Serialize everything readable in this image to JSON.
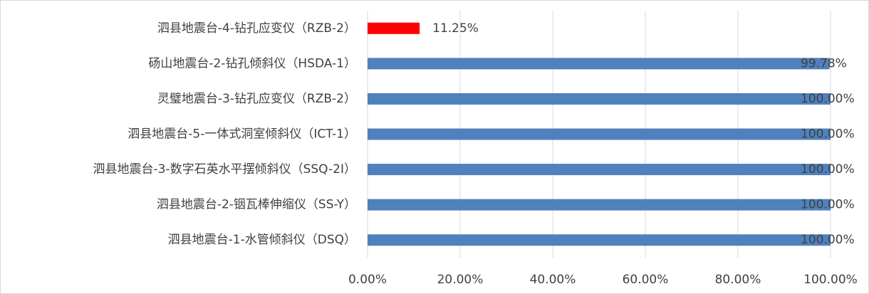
{
  "chart_data": {
    "type": "bar",
    "orientation": "horizontal",
    "categories": [
      "泗县地震台-4-钻孔应变仪（RZB-2）",
      "砀山地震台-2-钻孔倾斜仪（HSDA-1）",
      "灵璧地震台-3-钻孔应变仪（RZB-2）",
      "泗县地震台-5-一体式洞室倾斜仪（ICT-1）",
      "泗县地震台-3-数字石英水平摆倾斜仪（SSQ-2I）",
      "泗县地震台-2-铟瓦棒伸缩仪（SS-Y）",
      "泗县地震台-1-水管倾斜仪（DSQ）"
    ],
    "values": [
      11.25,
      99.78,
      100,
      100,
      100,
      100,
      100
    ],
    "value_labels": [
      "11.25%",
      "99.78%",
      "100.00%",
      "100.00%",
      "100.00%",
      "100.00%",
      "100.00%"
    ],
    "colors": [
      "#ff0000",
      "#4f81bd",
      "#4f81bd",
      "#4f81bd",
      "#4f81bd",
      "#4f81bd",
      "#4f81bd"
    ],
    "xlim": [
      0,
      100
    ],
    "xticks": [
      {
        "value": 0,
        "label": "0.00%"
      },
      {
        "value": 20,
        "label": "20.00%"
      },
      {
        "value": 40,
        "label": "40.00%"
      },
      {
        "value": 60,
        "label": "60.00%"
      },
      {
        "value": 80,
        "label": "80.00%"
      },
      {
        "value": 100,
        "label": "100.00%"
      }
    ],
    "grid": true
  }
}
